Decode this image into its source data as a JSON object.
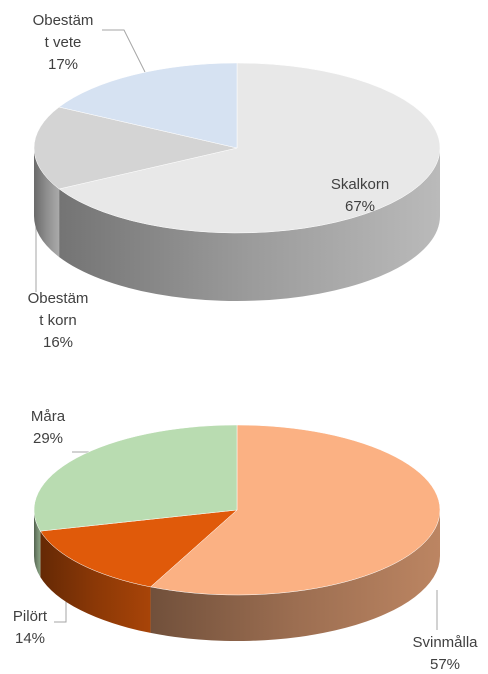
{
  "chart_data": [
    {
      "type": "pie3d",
      "categories": [
        "Skalkorn",
        "Obestämt korn",
        "Obestämt vete"
      ],
      "values": [
        67,
        16,
        17
      ],
      "value_labels": [
        "67%",
        "16%",
        "17%"
      ],
      "colors": [
        "#e8e8e8",
        "#d4d4d4",
        "#d6e2f2"
      ]
    },
    {
      "type": "pie3d",
      "categories": [
        "Svinmålla",
        "Pilört",
        "Måra"
      ],
      "values": [
        57,
        14,
        29
      ],
      "value_labels": [
        "57%",
        "14%",
        "29%"
      ],
      "colors": [
        "#fbb183",
        "#e05a0a",
        "#b9dcb1"
      ]
    }
  ]
}
